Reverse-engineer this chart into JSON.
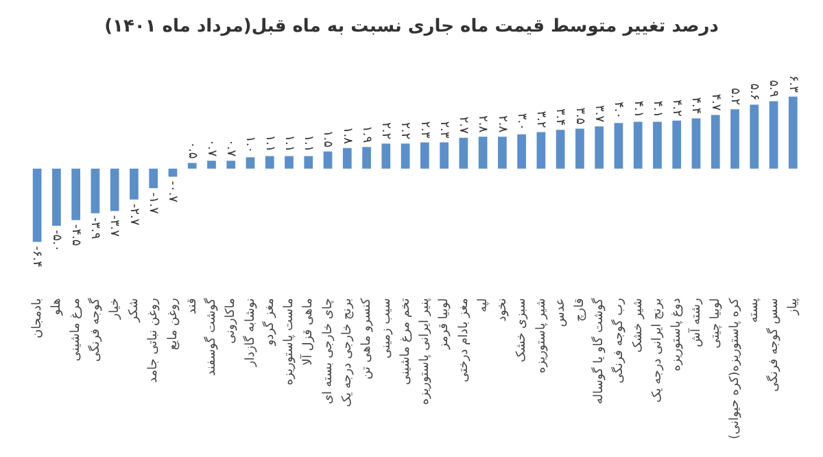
{
  "chart_data": {
    "type": "bar",
    "title": "درصد تغییر متوسط قیمت ماه جاری نسبت به ماه قبل(مرداد ماه ۱۴۰۱)",
    "categories": [
      "بادمجان",
      "هلو",
      "مرغ ماشینی",
      "گوجه فرنگی",
      "خیار",
      "شکر",
      "روغن نباتی جامد",
      "روغن مایع",
      "قند",
      "گوشت گوسفند",
      "ماکارونی",
      "نوشابه گازدار",
      "مغز گردو",
      "ماست پاستوریزه",
      "ماهی قزل آلا",
      "چای خارجی بسته ای",
      "برنج خارجی درجه یک",
      "کنسرو ماهی تن",
      "سیب زمینی",
      "تخم مرغ ماشینی",
      "پنیر ایرانی پاستوریزه",
      "لوبیا قرمز",
      "مغز بادام درختی",
      "لپه",
      "نخود",
      "سبزی خشک",
      "شیر پاستوریزه",
      "عدس",
      "قارچ",
      "گوشت گاو یا گوساله",
      "رب گوجه فرنگی",
      "شیر خشک",
      "برنج ایرانی درجه یک",
      "دوغ پاستوریزه",
      "رشته آش",
      "لوبیا چیتی",
      "کره پاستوریزه(کره حیوانی)",
      "پسته",
      "سس گوجه فرنگی",
      "پیاز"
    ],
    "values": [
      -6.4,
      -5.0,
      -4.5,
      -3.9,
      -3.7,
      -2.7,
      -1.7,
      -0.7,
      0.5,
      0.7,
      0.7,
      1.0,
      1.1,
      1.1,
      1.1,
      1.5,
      1.8,
      1.9,
      2.2,
      2.2,
      2.3,
      2.3,
      2.7,
      2.8,
      2.8,
      3.0,
      3.2,
      3.4,
      3.5,
      3.7,
      4.0,
      4.1,
      4.1,
      4.2,
      4.4,
      4.7,
      5.2,
      5.6,
      5.9,
      6.3
    ],
    "value_labels": [
      "-۶.۴",
      "-۵.۰",
      "-۴.۵",
      "-۳.۹",
      "-۳.۷",
      "-۲.۷",
      "-۱.۷",
      "-۰.۷",
      "۰.۵",
      "۰.۷",
      "۰.۷",
      "۱.۰",
      "۱.۱",
      "۱.۱",
      "۱.۱",
      "۱.۵",
      "۱.۸",
      "۱.۹",
      "۲.۲",
      "۲.۲",
      "۲.۳",
      "۲.۳",
      "۲.۷",
      "۲.۸",
      "۲.۸",
      "۳.۰",
      "۳.۲",
      "۳.۴",
      "۳.۵",
      "۳.۷",
      "۴.۰",
      "۴.۱",
      "۴.۱",
      "۴.۲",
      "۴.۴",
      "۴.۷",
      "۵.۲",
      "۵.۶",
      "۵.۹",
      "۶.۳"
    ],
    "color": "#5b8fc9",
    "grid": false,
    "legend": false
  }
}
